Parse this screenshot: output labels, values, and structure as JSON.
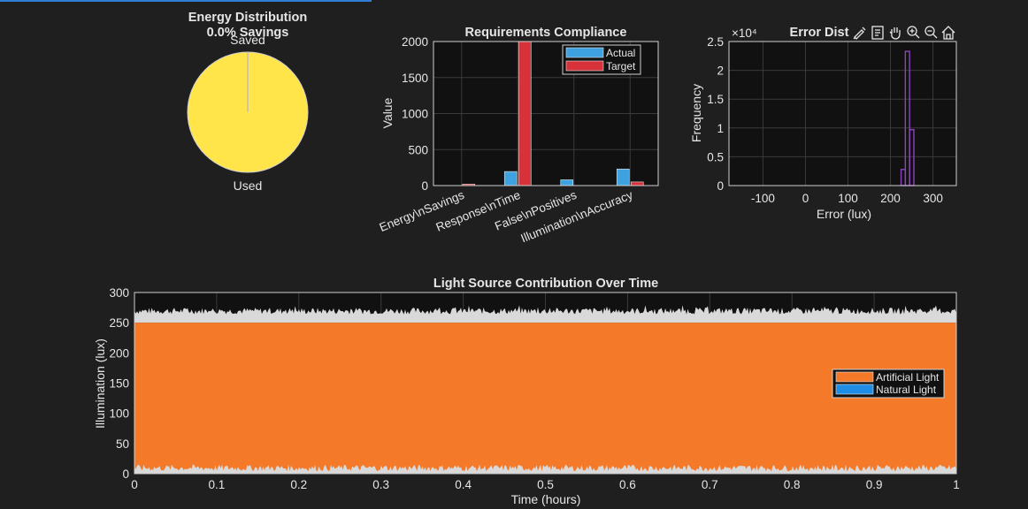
{
  "toolbar": {
    "icons": [
      "brush-icon",
      "datatip-icon",
      "pan-icon",
      "zoom-in-icon",
      "zoom-out-icon",
      "home-icon"
    ]
  },
  "colors": {
    "background": "#1f1f1f",
    "axes": "#111111",
    "grid": "#3a3a3a",
    "used": "#ffe54a",
    "saved": "#bdbdbd",
    "actual": "#3fa2e0",
    "target": "#d7313a",
    "histogram": "#8b45b8",
    "artificial": "#f47a2a",
    "natural": "#1f8ce6",
    "noise": "#d9d9d9"
  },
  "chart_data": [
    {
      "type": "pie",
      "title": "Energy Distribution",
      "subtitle": "0.0% Savings",
      "labels": [
        "Saved",
        "Used"
      ],
      "values": [
        0.0,
        100.0
      ]
    },
    {
      "type": "bar",
      "title": "Requirements Compliance",
      "ylabel": "Value",
      "xlabel": "",
      "categories": [
        "Energy\\nSavings",
        "Response\\nTime",
        "False\\nPositives",
        "Illumination\\nAccuracy"
      ],
      "series": [
        {
          "name": "Actual",
          "values": [
            0,
            195,
            80,
            230
          ]
        },
        {
          "name": "Target",
          "values": [
            20,
            2000,
            0,
            50
          ]
        }
      ],
      "ylim": [
        0,
        2000
      ],
      "yticks": [
        "0",
        "500",
        "1000",
        "1500",
        "2000"
      ],
      "grid": true,
      "legend": "top-right"
    },
    {
      "type": "bar",
      "title": "Error Dist",
      "xlabel": "Error (lux)",
      "ylabel": "Frequency",
      "exponent": "×10⁴",
      "bins": [
        {
          "x": 230,
          "y": 0.28
        },
        {
          "x": 240,
          "y": 2.33
        },
        {
          "x": 250,
          "y": 0.97
        }
      ],
      "bin_width": 10,
      "xlim": [
        -180,
        355
      ],
      "ylim": [
        0,
        2.5
      ],
      "xticks": [
        "-100",
        "0",
        "100",
        "200",
        "300"
      ],
      "yticks": [
        "0",
        "0.5",
        "1",
        "1.5",
        "2",
        "2.5"
      ],
      "grid": true
    },
    {
      "type": "area",
      "title": "Light Source Contribution Over Time",
      "xlabel": "Time (hours)",
      "ylabel": "Illumination (lux)",
      "series": [
        {
          "name": "Artificial Light",
          "values": [
            250
          ]
        },
        {
          "name": "Natural Light",
          "values": [
            0
          ]
        }
      ],
      "noise_band_top": [
        250,
        275
      ],
      "noise_band_bottom": [
        0,
        15
      ],
      "xlim": [
        0,
        1
      ],
      "ylim": [
        0,
        300
      ],
      "xticks": [
        "0",
        "0.1",
        "0.2",
        "0.3",
        "0.4",
        "0.5",
        "0.6",
        "0.7",
        "0.8",
        "0.9",
        "1"
      ],
      "yticks": [
        "0",
        "50",
        "100",
        "150",
        "200",
        "250",
        "300"
      ],
      "grid": true,
      "legend": "right"
    }
  ]
}
